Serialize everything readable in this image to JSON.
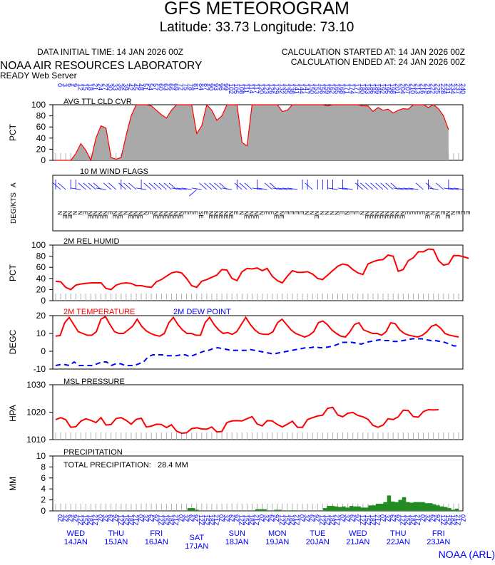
{
  "header": {
    "title": "GFS METEOROGRAM",
    "coords": "Latitude: 33.73 Longitude:  73.10",
    "data_time": "DATA INITIAL TIME: 14 JAN 2026 00Z",
    "calc_started": "CALCULATION STARTED AT: 14 JAN 2026 00Z",
    "calc_ended": "CALCULATION ENDED AT: 24 JAN 2026 00Z",
    "lab": "NOAA AIR RESOURCES LABORATORY",
    "server": "READY Web Server",
    "credit": "NOAA (ARL)"
  },
  "colors": {
    "primary": "#ff0000",
    "secondary": "#0000ff",
    "cloud_fill": "#a9a9a9",
    "precip_fill": "#228b22",
    "label_blue": "#0000ff"
  },
  "time_axis": {
    "hour_labels": [
      "0",
      "3",
      "6",
      "9",
      "12",
      "15",
      "18",
      "21",
      "24",
      "27",
      "30",
      "33",
      "36",
      "39",
      "42",
      "45",
      "48",
      "51",
      "54",
      "57",
      "60",
      "63",
      "66",
      "69",
      "72",
      "75",
      "78",
      "81",
      "84",
      "87",
      "90",
      "93",
      "96",
      "99",
      "102",
      "105",
      "108",
      "111",
      "114",
      "117",
      "120",
      "123",
      "126",
      "129",
      "132",
      "135",
      "138",
      "141",
      "144",
      "147",
      "150",
      "153",
      "156",
      "159",
      "162",
      "165",
      "168",
      "171",
      "174",
      "177",
      "180",
      "183",
      "186",
      "189",
      "192",
      "195",
      "198",
      "201",
      "204",
      "207",
      "210",
      "213",
      "216",
      "219",
      "222",
      "225",
      "228",
      "231",
      "234",
      "237",
      "240"
    ],
    "utc_labels": [
      "0Z",
      "3Z",
      "6Z",
      "9Z",
      "12Z",
      "15Z",
      "18Z",
      "21Z"
    ],
    "days": [
      {
        "weekday": "WED",
        "date": "14JAN"
      },
      {
        "weekday": "THU",
        "date": "15JAN"
      },
      {
        "weekday": "FRI",
        "date": "16JAN"
      },
      {
        "weekday": "SAT",
        "date": "17JAN"
      },
      {
        "weekday": "SUN",
        "date": "18JAN"
      },
      {
        "weekday": "MON",
        "date": "19JAN"
      },
      {
        "weekday": "TUE",
        "date": "20JAN"
      },
      {
        "weekday": "WED",
        "date": "21JAN"
      },
      {
        "weekday": "THU",
        "date": "22JAN"
      },
      {
        "weekday": "FRI",
        "date": "23JAN"
      }
    ]
  },
  "chart_data": [
    {
      "type": "area",
      "title": "AVG TTL CLD CVR",
      "ylabel": "PCT",
      "ylim": [
        0,
        100
      ],
      "yticks": [
        0,
        20,
        40,
        60,
        80,
        100
      ],
      "x_step_hours": 3,
      "values": [
        0,
        0,
        0,
        0,
        12,
        30,
        18,
        0,
        40,
        62,
        58,
        5,
        2,
        5,
        45,
        80,
        100,
        100,
        100,
        98,
        90,
        82,
        76,
        90,
        100,
        100,
        100,
        100,
        48,
        62,
        100,
        90,
        72,
        80,
        100,
        100,
        100,
        32,
        26,
        100,
        100,
        100,
        100,
        100,
        100,
        88,
        90,
        100,
        100,
        100,
        100,
        100,
        100,
        100,
        98,
        100,
        100,
        100,
        100,
        100,
        100,
        98,
        98,
        88,
        95,
        90,
        92,
        85,
        90,
        93,
        92,
        100,
        100,
        100,
        95,
        100,
        93,
        80,
        55
      ]
    },
    {
      "type": "wind_flags",
      "title": "10 M  WIND FLAGS",
      "ylabel": "DEG/KTS",
      "ylabel_suffix": "A",
      "directions": [
        "N",
        "NE",
        "NE",
        "N",
        "N",
        "E",
        "NE",
        "NE",
        "NE",
        "NE",
        "E",
        "NE",
        "NE",
        "N",
        "NE",
        "NE",
        "NE",
        "N",
        "E",
        "NE",
        "NE",
        "NE",
        "NE",
        "NE",
        "NE",
        "E",
        "E",
        "E",
        "SE",
        "E",
        "NE",
        "NE",
        "NE",
        "NE",
        "NE",
        "E",
        "N",
        "NE",
        "NE",
        "NE",
        "N",
        "E",
        "E",
        "NE",
        "NE",
        "E",
        "E",
        "E",
        "E",
        "N",
        "N",
        "NE",
        "N",
        "N",
        "N",
        "N",
        "E",
        "N",
        "E",
        "E",
        "N",
        "NE",
        "NE",
        "NE",
        "NE",
        "NE",
        "NE",
        "NE",
        "NE",
        "E",
        "E",
        "E",
        "E",
        "NE",
        "N",
        "NE",
        "E",
        "NE",
        "N",
        "E",
        "E",
        "E"
      ]
    },
    {
      "type": "line",
      "title": "2M REL HUMID",
      "ylabel": "PCT",
      "ylim": [
        0,
        100
      ],
      "yticks": [
        0,
        20,
        40,
        60,
        80,
        100
      ],
      "x_step_hours": 3,
      "series": [
        {
          "name": "2M REL HUMID",
          "color": "#ff0000",
          "values": [
            35,
            34,
            24,
            20,
            28,
            30,
            31,
            32,
            32,
            32,
            22,
            20,
            28,
            31,
            32,
            31,
            27,
            27,
            25,
            24,
            34,
            38,
            44,
            50,
            52,
            50,
            40,
            27,
            24,
            35,
            38,
            42,
            46,
            56,
            55,
            40,
            36,
            52,
            58,
            57,
            59,
            54,
            58,
            44,
            36,
            32,
            44,
            54,
            51,
            51,
            52,
            48,
            40,
            38,
            46,
            54,
            62,
            66,
            64,
            56,
            50,
            47,
            66,
            70,
            73,
            74,
            82,
            80,
            53,
            56,
            72,
            77,
            88,
            88,
            93,
            92,
            72,
            64,
            66,
            81,
            81,
            79,
            76
          ]
        }
      ]
    },
    {
      "type": "line",
      "ylabel": "DEGC",
      "ylim": [
        -10,
        20
      ],
      "yticks": [
        -10,
        0,
        10,
        20
      ],
      "x_step_hours": 3,
      "legend": [
        "2M TEMPERATURE",
        "2M  DEW POINT"
      ],
      "series": [
        {
          "name": "2M TEMPERATURE",
          "color": "#ff0000",
          "values": [
            8.5,
            8.8,
            16,
            19,
            15,
            11,
            10,
            9,
            9,
            11,
            18,
            19.5,
            15,
            11,
            10,
            10,
            12,
            14,
            18,
            14,
            11.5,
            10,
            9,
            8.5,
            10,
            16,
            19,
            15,
            12,
            10,
            10,
            9,
            9,
            16,
            19,
            15,
            12,
            10,
            10.5,
            9.5,
            11,
            15,
            19,
            15,
            12,
            10,
            9.5,
            9.5,
            11,
            16,
            18,
            15,
            12,
            10,
            9,
            8,
            9,
            11,
            16,
            17,
            15,
            12,
            10,
            8.5,
            8,
            11,
            15,
            16,
            12,
            11,
            10,
            10,
            9,
            11,
            16,
            15.5,
            12,
            10,
            9,
            8.5,
            8,
            9,
            11,
            14,
            15,
            13,
            10,
            9,
            8.5,
            8
          ]
        },
        {
          "name": "2M  DEW POINT",
          "color": "#0000ff",
          "dashed": true,
          "values": [
            -8,
            -7.5,
            -7.5,
            -8,
            -6,
            -8,
            -8,
            -8,
            -8,
            -7,
            -6,
            -6,
            -8,
            -7,
            -7,
            -8,
            -8,
            -8,
            -7,
            -6,
            -3,
            -2,
            -2,
            -2,
            -2.5,
            -2.5,
            -2.5,
            -2,
            -2,
            -3,
            -2,
            -1,
            0,
            0.5,
            1.5,
            2,
            1.5,
            1,
            0.5,
            0.5,
            0.5,
            0.5,
            1,
            0.5,
            0,
            -0.5,
            -1,
            -1.5,
            -1,
            -0.5,
            0,
            0.5,
            1,
            1.5,
            2,
            2,
            2.5,
            2,
            2,
            2.5,
            3,
            4,
            5,
            5,
            5,
            4.5,
            4,
            5,
            5.5,
            6,
            6.5,
            6,
            6,
            5.5,
            5.5,
            6,
            6.5,
            7,
            7,
            7,
            6.5,
            6,
            6,
            5.5,
            5,
            4,
            3,
            3
          ]
        }
      ]
    },
    {
      "type": "line",
      "title": "MSL PRESSURE",
      "ylabel": "HPA",
      "ylim": [
        1010,
        1030
      ],
      "yticks": [
        1010,
        1020,
        1030
      ],
      "x_step_hours": 3,
      "series": [
        {
          "name": "MSL PRESSURE",
          "color": "#ff0000",
          "values": [
            1017.3,
            1018.0,
            1017.3,
            1014.5,
            1014.7,
            1016.7,
            1017.6,
            1017.0,
            1016.2,
            1018.0,
            1015.3,
            1015.5,
            1017.7,
            1018.0,
            1017.0,
            1015.6,
            1017.4,
            1017.8,
            1014.6,
            1014.9,
            1015.6,
            1015.5,
            1014.4,
            1015.4,
            1013.1,
            1012.3,
            1012.5,
            1014.0,
            1014.3,
            1013.9,
            1013.8,
            1014.6,
            1012.8,
            1013.0,
            1016.2,
            1016.8,
            1016.9,
            1016.8,
            1017.6,
            1018.4,
            1015.7,
            1015.0,
            1016.9,
            1016.8,
            1015.5,
            1014.6,
            1015.6,
            1016.7,
            1014.5,
            1014.5,
            1017.3,
            1018.0,
            1018.6,
            1018.9,
            1021.4,
            1021.8,
            1019.0,
            1018.3,
            1019.6,
            1019.9,
            1018.8,
            1018.3,
            1017.4,
            1015.2,
            1014.5,
            1015.3,
            1017.6,
            1017.3,
            1018.3,
            1020.7,
            1020.6,
            1018.4,
            1018.2,
            1020.2,
            1020.9,
            1020.8,
            1020.9
          ]
        }
      ]
    },
    {
      "type": "bar",
      "title": "PRECIPITATION",
      "ylabel": "MM",
      "ylim": [
        0,
        10
      ],
      "yticks": [
        0,
        2,
        4,
        6,
        8,
        10
      ],
      "x_step_hours": 3,
      "total_label": "TOTAL PRECIPITATION:",
      "total_value": "28.4 MM",
      "values": [
        0,
        0,
        0,
        0,
        0,
        0,
        0,
        0,
        0,
        0,
        0,
        0,
        0,
        0,
        0,
        0,
        0,
        0,
        0,
        0,
        0,
        0,
        0,
        0,
        0,
        0,
        0,
        0,
        0,
        0,
        0,
        0,
        0,
        0,
        0,
        0.5,
        0.5,
        0.2,
        0,
        0,
        0,
        0,
        0,
        0,
        0,
        0,
        0,
        0,
        0,
        0,
        0,
        0,
        0,
        0.3,
        0.3,
        0.3,
        0.1,
        0,
        0.2,
        0.2,
        0,
        0,
        0.1,
        0.1,
        0,
        0,
        0,
        0,
        0,
        0,
        0,
        0.5,
        0.9,
        0.9,
        0.8,
        0.7,
        0.8,
        0.6,
        0.9,
        0.8,
        0.8,
        0.6,
        0.6,
        1.0,
        1.0,
        1.3,
        1.3,
        1.6,
        2.8,
        1.7,
        1.6,
        2.0,
        2.5,
        1.6,
        1.5,
        1.6,
        1.6,
        1.6,
        1.4,
        1.4,
        1.2,
        1.0,
        0.8,
        0.7,
        0.5,
        0.2,
        0.4
      ]
    }
  ]
}
